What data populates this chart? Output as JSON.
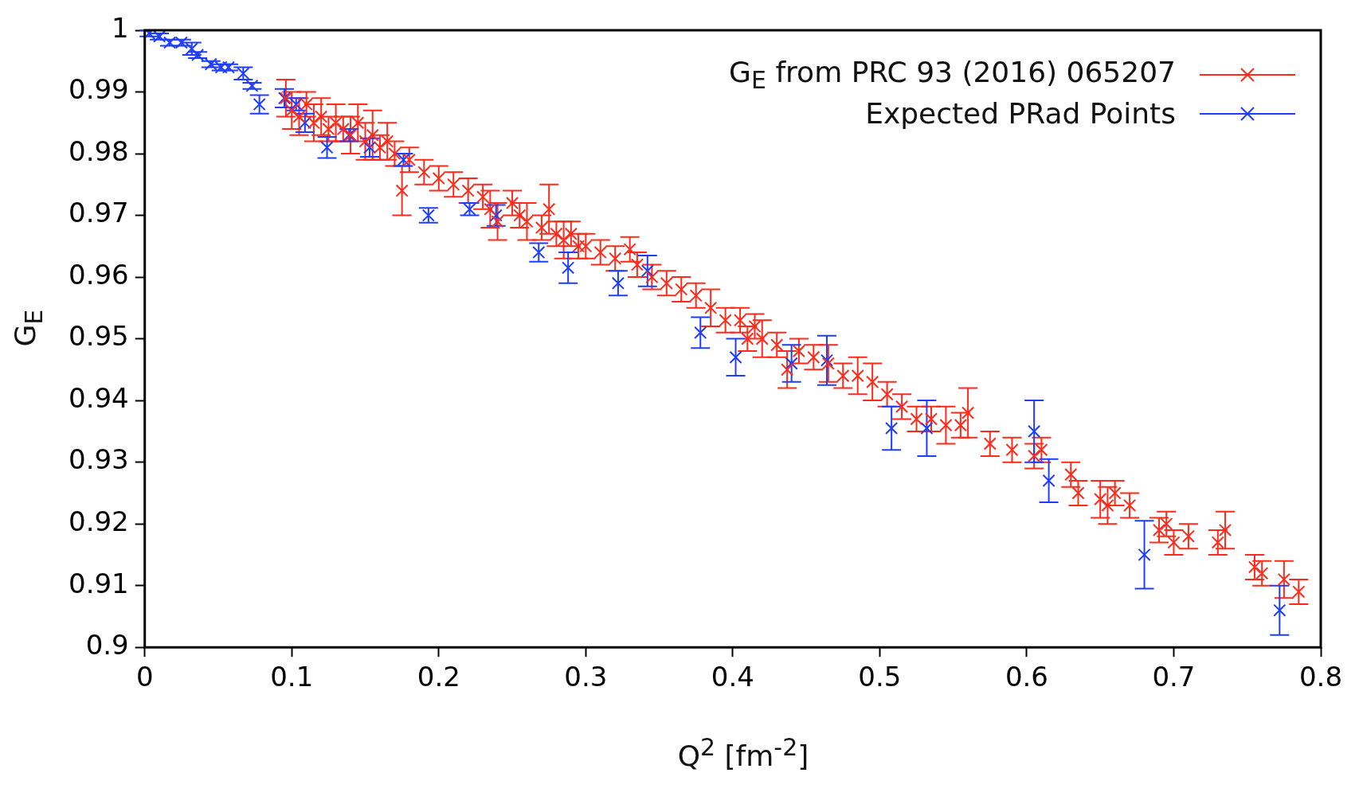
{
  "chart_data": {
    "type": "scatter",
    "xlabel": "Q$^{2}$ [fm$^{-2}$]",
    "ylabel": "G$_{E}$",
    "xlim": [
      0,
      0.8
    ],
    "xticks": [
      0,
      0.1,
      0.2,
      0.3,
      0.4,
      0.5,
      0.6,
      0.7,
      0.8
    ],
    "ylim": [
      0.9,
      1
    ],
    "yticks": [
      0.9,
      0.91,
      0.92,
      0.93,
      0.94,
      0.95,
      0.96,
      0.97,
      0.98,
      0.99,
      1
    ],
    "grid": false,
    "legend": "top right",
    "marker": "cross",
    "series": [
      {
        "name": "G$_{E}$ from PRC 93 (2016) 065207",
        "color": "#ff2a1a",
        "x": [
          0.096,
          0.1,
          0.105,
          0.11,
          0.115,
          0.12,
          0.125,
          0.13,
          0.135,
          0.14,
          0.145,
          0.15,
          0.155,
          0.16,
          0.165,
          0.17,
          0.175,
          0.18,
          0.19,
          0.2,
          0.21,
          0.22,
          0.23,
          0.235,
          0.24,
          0.25,
          0.255,
          0.26,
          0.27,
          0.275,
          0.28,
          0.285,
          0.29,
          0.295,
          0.3,
          0.31,
          0.32,
          0.33,
          0.335,
          0.345,
          0.355,
          0.365,
          0.375,
          0.385,
          0.395,
          0.405,
          0.41,
          0.415,
          0.42,
          0.43,
          0.437,
          0.445,
          0.455,
          0.465,
          0.475,
          0.485,
          0.495,
          0.505,
          0.515,
          0.525,
          0.535,
          0.545,
          0.555,
          0.56,
          0.575,
          0.59,
          0.605,
          0.61,
          0.63,
          0.635,
          0.65,
          0.655,
          0.66,
          0.67,
          0.69,
          0.695,
          0.7,
          0.71,
          0.73,
          0.735,
          0.755,
          0.76,
          0.775,
          0.785
        ],
        "values": [
          0.989,
          0.987,
          0.986,
          0.988,
          0.985,
          0.986,
          0.984,
          0.985,
          0.984,
          0.983,
          0.985,
          0.982,
          0.983,
          0.981,
          0.982,
          0.98,
          0.974,
          0.979,
          0.977,
          0.976,
          0.975,
          0.974,
          0.973,
          0.971,
          0.969,
          0.972,
          0.97,
          0.969,
          0.968,
          0.971,
          0.967,
          0.966,
          0.967,
          0.965,
          0.965,
          0.964,
          0.963,
          0.9645,
          0.962,
          0.96,
          0.959,
          0.958,
          0.957,
          0.955,
          0.953,
          0.953,
          0.95,
          0.952,
          0.95,
          0.949,
          0.945,
          0.948,
          0.947,
          0.946,
          0.944,
          0.944,
          0.943,
          0.941,
          0.939,
          0.937,
          0.937,
          0.936,
          0.936,
          0.938,
          0.933,
          0.932,
          0.931,
          0.932,
          0.928,
          0.925,
          0.924,
          0.923,
          0.925,
          0.923,
          0.919,
          0.92,
          0.917,
          0.918,
          0.917,
          0.919,
          0.913,
          0.912,
          0.911,
          0.909
        ],
        "errors": [
          0.003,
          0.003,
          0.003,
          0.002,
          0.003,
          0.003,
          0.002,
          0.003,
          0.002,
          0.003,
          0.003,
          0.003,
          0.004,
          0.002,
          0.003,
          0.002,
          0.004,
          0.002,
          0.002,
          0.002,
          0.002,
          0.002,
          0.002,
          0.003,
          0.003,
          0.002,
          0.002,
          0.003,
          0.002,
          0.004,
          0.002,
          0.003,
          0.002,
          0.002,
          0.002,
          0.002,
          0.002,
          0.002,
          0.002,
          0.002,
          0.002,
          0.002,
          0.002,
          0.003,
          0.002,
          0.002,
          0.002,
          0.002,
          0.003,
          0.002,
          0.003,
          0.002,
          0.002,
          0.003,
          0.002,
          0.003,
          0.003,
          0.002,
          0.002,
          0.002,
          0.002,
          0.003,
          0.002,
          0.004,
          0.002,
          0.002,
          0.002,
          0.002,
          0.002,
          0.002,
          0.003,
          0.003,
          0.002,
          0.002,
          0.002,
          0.002,
          0.002,
          0.002,
          0.002,
          0.003,
          0.002,
          0.002,
          0.003,
          0.002
        ]
      },
      {
        "name": "Expected PRad Points",
        "color": "#1f3dff",
        "x": [
          0.003,
          0.01,
          0.017,
          0.025,
          0.032,
          0.036,
          0.045,
          0.052,
          0.057,
          0.067,
          0.073,
          0.078,
          0.095,
          0.103,
          0.109,
          0.124,
          0.139,
          0.153,
          0.176,
          0.193,
          0.221,
          0.239,
          0.268,
          0.288,
          0.322,
          0.342,
          0.378,
          0.402,
          0.44,
          0.464,
          0.508,
          0.532,
          0.605,
          0.615,
          0.68,
          0.772
        ],
        "values": [
          0.9995,
          0.999,
          0.998,
          0.998,
          0.997,
          0.996,
          0.9945,
          0.994,
          0.994,
          0.993,
          0.991,
          0.988,
          0.989,
          0.988,
          0.985,
          0.981,
          0.983,
          0.981,
          0.979,
          0.97,
          0.971,
          0.97,
          0.964,
          0.9615,
          0.959,
          0.961,
          0.951,
          0.947,
          0.946,
          0.9465,
          0.9355,
          0.9355,
          0.935,
          0.927,
          0.915,
          0.906
        ],
        "errors": [
          0.0005,
          0.0005,
          0.0005,
          0.0005,
          0.001,
          0.0005,
          0.0005,
          0.0005,
          0.0005,
          0.001,
          0.0005,
          0.0015,
          0.0015,
          0.001,
          0.0015,
          0.0017,
          0.001,
          0.0015,
          0.001,
          0.0012,
          0.001,
          0.0017,
          0.0015,
          0.0025,
          0.002,
          0.0025,
          0.0025,
          0.003,
          0.003,
          0.004,
          0.0035,
          0.0045,
          0.005,
          0.0035,
          0.0055,
          0.004
        ]
      }
    ]
  }
}
